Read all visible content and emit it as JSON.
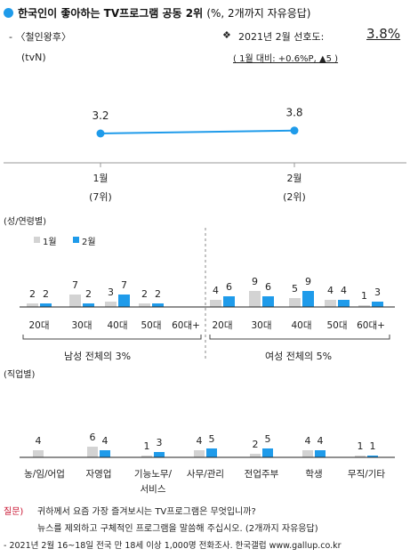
{
  "header": {
    "title_main": "한국인이 좋아하는 TV프로그램 공동 2위",
    "title_note": "(%, 2개까지 자유응답)",
    "program": "- 〈철인왕후〉",
    "channel": "(tvN)",
    "pref_label": "2021년 2월 선호도:",
    "pref_value": "3.8%",
    "change_note": "( 1월 대비: +0.6%P, ▲5 )"
  },
  "colors": {
    "prev": "#d3d3d3",
    "curr": "#1f9bea",
    "line": "#1f9bea",
    "red": "#c8102e"
  },
  "trend": {
    "points": [
      {
        "period": "1월",
        "rank": "(7위)",
        "value": 3.2
      },
      {
        "period": "2월",
        "rank": "(2위)",
        "value": 3.8
      }
    ]
  },
  "legend": {
    "prev": "1월",
    "curr": "2월"
  },
  "sections": {
    "demo_title": "(성/연령별)",
    "occ_title": "(직업별)",
    "male_summary": "남성 전체의 3%",
    "female_summary": "여성 전체의 5%"
  },
  "chart_data": [
    {
      "type": "bar",
      "title": "성/연령별",
      "categories": [
        "남 20대",
        "남 30대",
        "남 40대",
        "남 50대",
        "남 60대+",
        "여 20대",
        "여 30대",
        "여 40대",
        "여 50대",
        "여 60대+"
      ],
      "tick_labels": [
        "20대",
        "30대",
        "40대",
        "50대",
        "60대+",
        "20대",
        "30대",
        "40대",
        "50대",
        "60대+"
      ],
      "series": [
        {
          "name": "1월",
          "values": [
            2,
            7,
            3,
            2,
            null,
            4,
            9,
            5,
            4,
            1
          ],
          "labels": [
            "2",
            "7",
            "3",
            "2",
            "",
            "4",
            "9",
            "5",
            "4",
            "1"
          ]
        },
        {
          "name": "2월",
          "values": [
            2,
            2,
            7,
            2,
            null,
            6,
            6,
            9,
            4,
            3
          ],
          "labels": [
            "2",
            "2",
            "7",
            "2",
            "",
            "6",
            "6",
            "9",
            "4",
            "3"
          ]
        }
      ]
    },
    {
      "type": "bar",
      "title": "직업별",
      "categories": [
        "농/임/어업",
        "자영업",
        "기능노무/서비스",
        "사무/관리",
        "전업주부",
        "학생",
        "무직/기타"
      ],
      "tick_labels": [
        [
          "농/임/어업"
        ],
        [
          "자영업"
        ],
        [
          "기능노무/",
          "서비스"
        ],
        [
          "사무/관리"
        ],
        [
          "전업주부"
        ],
        [
          "학생"
        ],
        [
          "무직/기타"
        ]
      ],
      "series": [
        {
          "name": "1월",
          "values": [
            4,
            6,
            1,
            4,
            2,
            4,
            1
          ],
          "labels": [
            "4",
            "6",
            "1",
            "4",
            "2",
            "4",
            "1"
          ]
        },
        {
          "name": "2월",
          "values": [
            null,
            4,
            3,
            5,
            5,
            4,
            1
          ],
          "labels": [
            "",
            "4",
            "3",
            "5",
            "5",
            "4",
            "1"
          ]
        }
      ]
    }
  ],
  "footer": {
    "q_label": "질문)",
    "q_text1": "귀하께서 요즘 가장 즐겨보시는 TV프로그램은 무엇입니까?",
    "q_text2": "뉴스를 제외하고 구체적인 프로그램을 말씀해 주십시오. (2개까지 자유응답)",
    "source": "- 2021년 2월 16~18일 전국 만 18세 이상 1,000명 전화조사. 한국갤럽 www.gallup.co.kr"
  }
}
